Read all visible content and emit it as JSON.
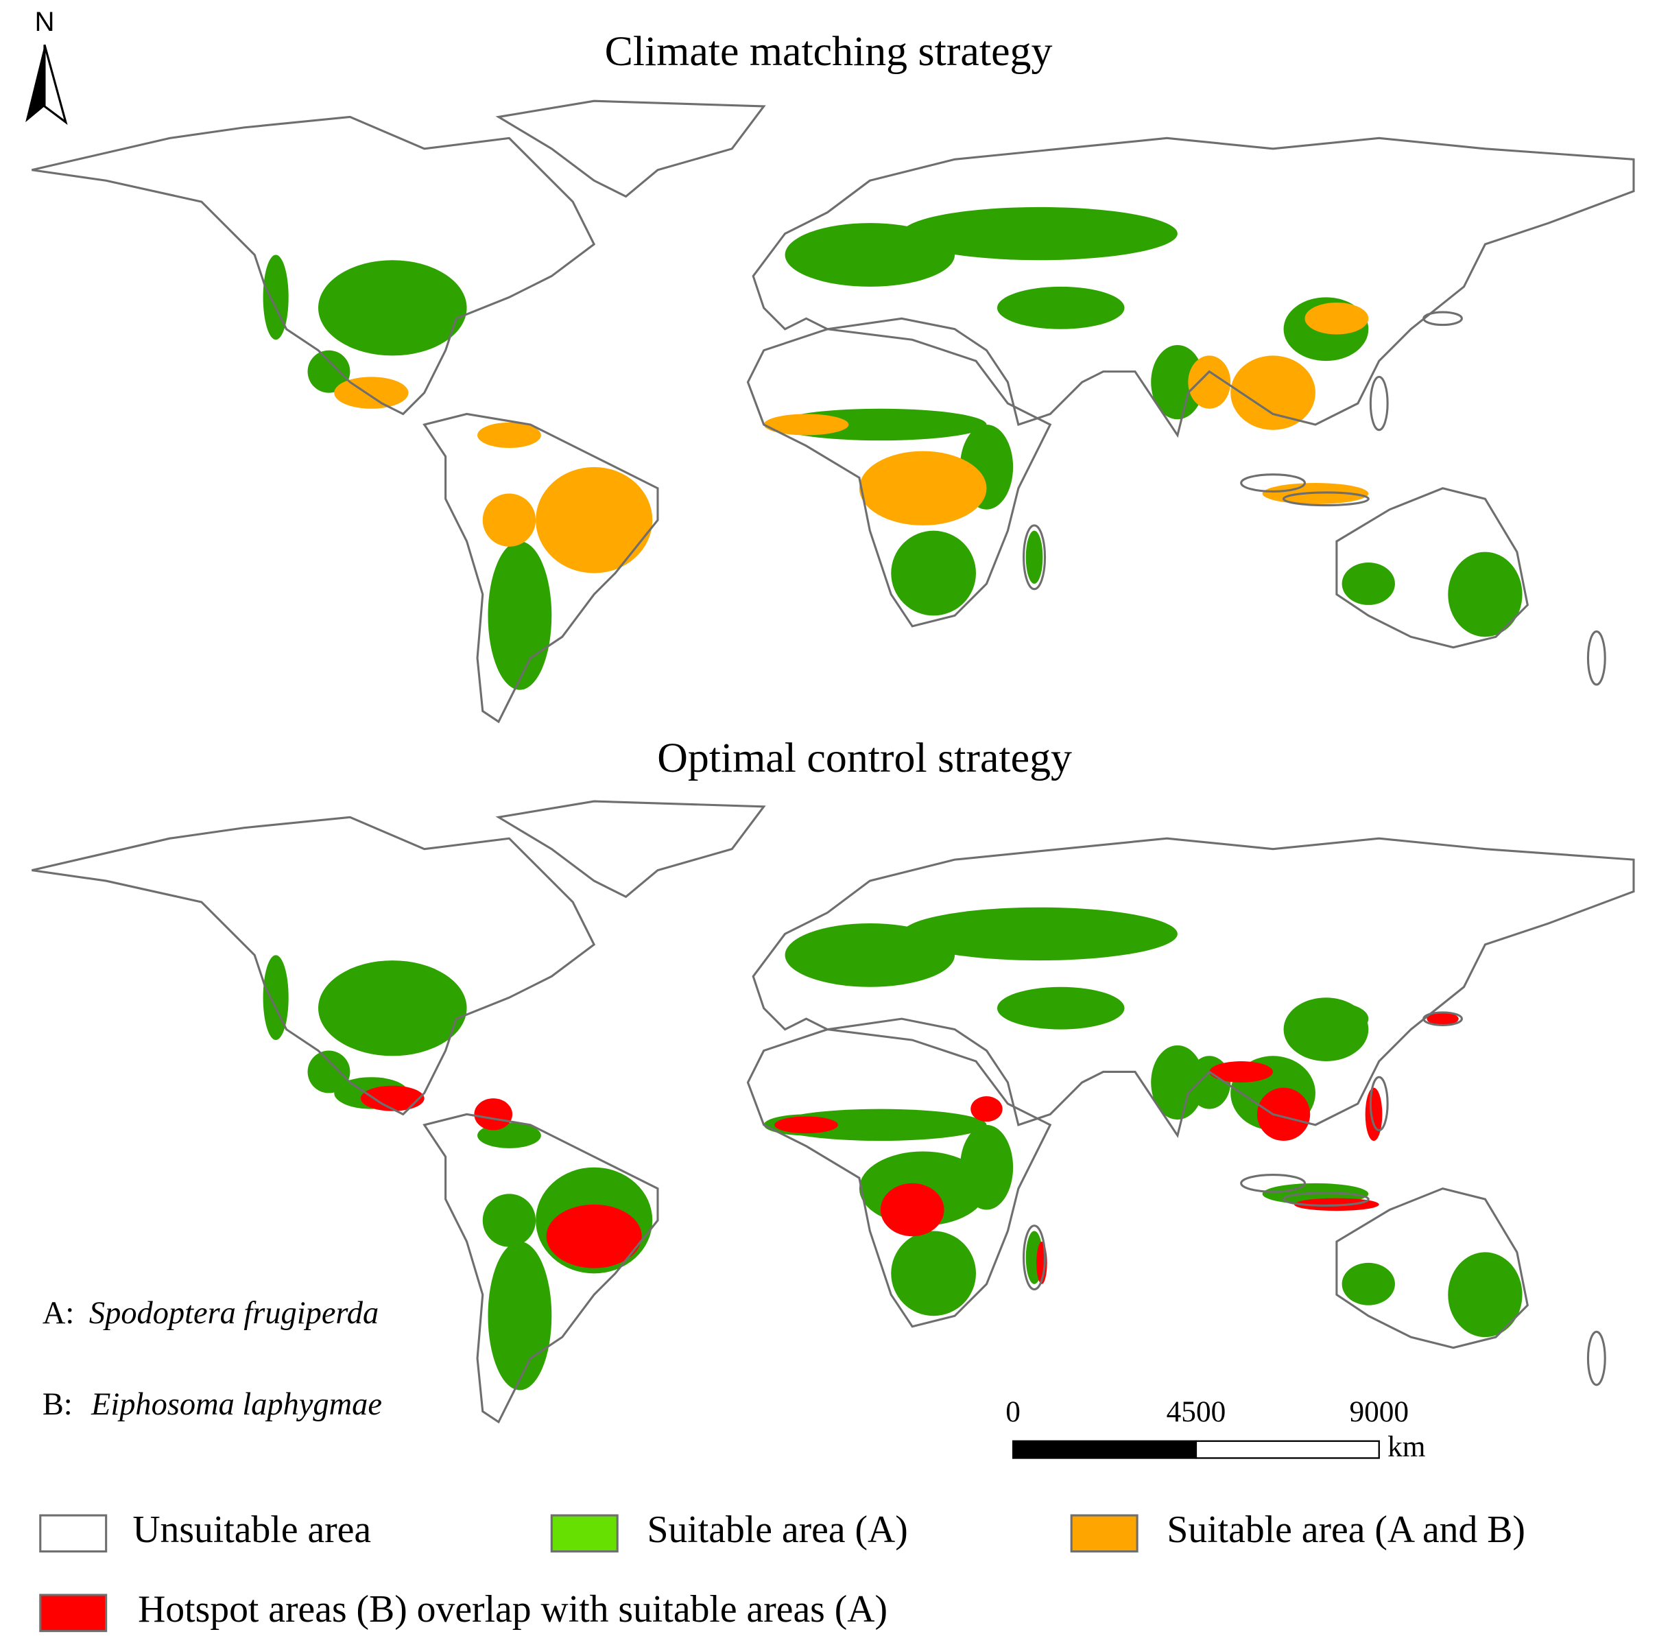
{
  "north": "N",
  "maps": [
    {
      "title": "Climate matching strategy"
    },
    {
      "title": "Optimal control strategy"
    }
  ],
  "species": [
    {
      "key": "A:",
      "name": "Spodoptera frugiperda"
    },
    {
      "key": "B:",
      "name": "Eiphosoma laphygmae"
    }
  ],
  "scale_bar": {
    "ticks": [
      0,
      4500,
      9000
    ],
    "unit": "km"
  },
  "legend": [
    {
      "label": "Unsuitable area",
      "color": "#ffffff"
    },
    {
      "label": "Suitable area (A)",
      "color": "#66e000"
    },
    {
      "label": "Suitable area (A and B)",
      "color": "#ffa500"
    },
    {
      "label": "Hotspot areas (B) overlap with suitable areas (A)",
      "color": "#ff0000"
    }
  ]
}
